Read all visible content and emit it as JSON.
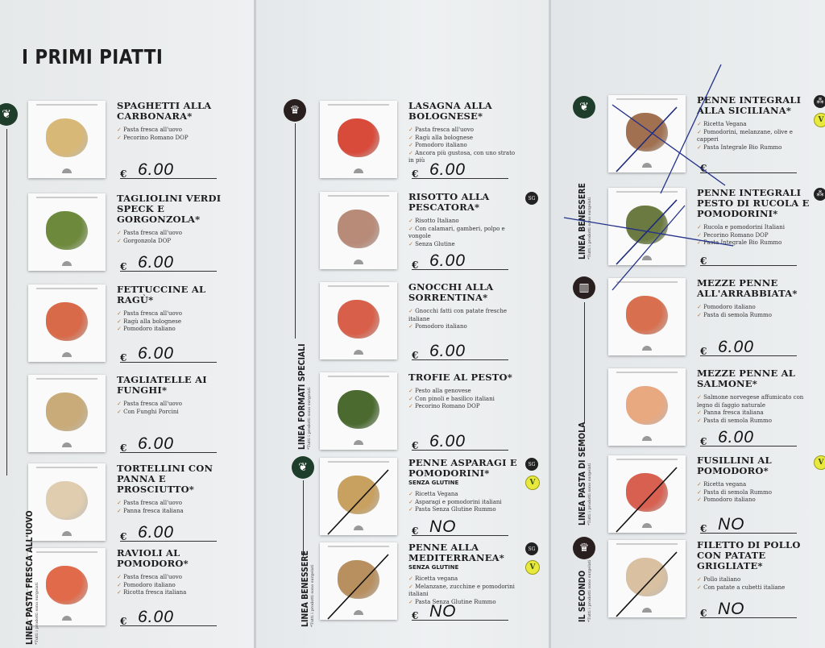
{
  "title": "I PRIMI PIATTI",
  "currency": "€",
  "sections": [
    {
      "name": "LINEA PASTA FRESCA ALL'UOVO",
      "note": "*Tutti i prodotti sono surgelati",
      "icon": "leaf-icon"
    },
    {
      "name": "LINEA FORMATI SPECIALI",
      "note": "*Tutti i prodotti sono surgelati",
      "icon": "chef-hat-icon"
    },
    {
      "name": "LINEA BENESSERE",
      "note": "*Tutti i prodotti sono surgelati",
      "icon": "leaf-icon"
    },
    {
      "name": "LINEA BENESSERE",
      "note": "*Tutti i prodotti sono surgelati",
      "icon": "leaf-icon"
    },
    {
      "name": "LINEA PASTA DI SEMOLA",
      "note": "*Tutti i prodotti sono surgelati",
      "icon": "pasta-icon"
    },
    {
      "name": "IL SECONDO",
      "note": "*Tutti i prodotti sono surgelati",
      "icon": "chef-hat-icon"
    }
  ],
  "colors": {
    "section_icon": "#1f3d2b",
    "dark_icon": "#2a1f1f",
    "vegan_badge": "#e7ea3c",
    "check": "#b07a4a"
  },
  "columns": [
    {
      "items": [
        {
          "name": "SPAGHETTI ALLA CARBONARA*",
          "ingredients": [
            "Pasta fresca all'uovo",
            "Pecorino Romano DOP"
          ],
          "price": "6.00",
          "food_color": "#d8b877"
        },
        {
          "name": "TAGLIOLINI VERDI SPECK E GORGONZOLA*",
          "ingredients": [
            "Pasta fresca all'uovo",
            "Gorgonzola DOP"
          ],
          "price": "6.00",
          "food_color": "#6d8a3c"
        },
        {
          "name": "FETTUCCINE AL RAGÙ*",
          "ingredients": [
            "Pasta fresca all'uovo",
            "Ragù alla bolognese",
            "Pomodoro italiano"
          ],
          "price": "6.00",
          "food_color": "#d86a4a"
        },
        {
          "name": "TAGLIATELLE AI FUNGHI*",
          "ingredients": [
            "Pasta fresca all'uovo",
            "Con Funghi Porcini"
          ],
          "price": "6.00",
          "food_color": "#c9ab7a"
        },
        {
          "name": "TORTELLINI CON PANNA E PROSCIUTTO*",
          "ingredients": [
            "Pasta fresca all'uovo",
            "Panna fresca italiana"
          ],
          "price": "6.00",
          "food_color": "#e0cdb0"
        },
        {
          "name": "RAVIOLI AL POMODORO*",
          "ingredients": [
            "Pasta fresca all'uovo",
            "Pomodoro italiano",
            "Ricotta fresca italiana"
          ],
          "price": "6.00",
          "food_color": "#e06a4a"
        }
      ]
    },
    {
      "items": [
        {
          "name": "LASAGNA ALLA BOLOGNESE*",
          "ingredients": [
            "Pasta fresca all'uovo",
            "Ragù alla bolognese",
            "Pomodoro italiano",
            "Ancora più gustosa, con uno strato in più"
          ],
          "price": "6.00",
          "food_color": "#d84a3a"
        },
        {
          "name": "RISOTTO ALLA PESCATORA*",
          "ingredients": [
            "Risotto Italiano",
            "Con calamari, gamberi, polpo e vongole",
            "Senza Glutine"
          ],
          "price": "6.00",
          "food_color": "#b88a78",
          "badges": [
            "gluten-free"
          ]
        },
        {
          "name": "GNOCCHI ALLA SORRENTINA*",
          "ingredients": [
            "Gnocchi fatti con patate fresche italiane",
            "Pomodoro italiano"
          ],
          "price": "6.00",
          "food_color": "#d8604a"
        },
        {
          "name": "TROFIE AL PESTO*",
          "ingredients": [
            "Pesto alla genovese",
            "Con pinoli e basilico italiani",
            "Pecorino Romano DOP"
          ],
          "price": "6.00",
          "food_color": "#4a6a30"
        },
        {
          "name": "PENNE ASPARAGI E POMODORINI*",
          "subtitle": "SENZA GLUTINE",
          "ingredients": [
            "Ricetta Vegana",
            "Asparagi e pomodorini italiani",
            "Pasta Senza Glutine Rummo"
          ],
          "price": "NO",
          "food_color": "#c8a060",
          "badges": [
            "gluten-free",
            "vegan"
          ],
          "crossed_out": true
        },
        {
          "name": "PENNE ALLA MEDITERRANEA*",
          "subtitle": "SENZA GLUTINE",
          "ingredients": [
            "Ricetta vegana",
            "Melanzane, zucchine e pomodorini italiani",
            "Pasta Senza Glutine Rummo"
          ],
          "price": "NO",
          "food_color": "#b89060",
          "badges": [
            "gluten-free",
            "vegan"
          ],
          "crossed_out": true
        }
      ]
    },
    {
      "items": [
        {
          "name": "PENNE INTEGRALI ALLA SICILIANA*",
          "ingredients": [
            "Ricetta Vegana",
            "Pomodorini, melanzane, olive e capperi",
            "Pasta Integrale Bio Rummo"
          ],
          "price": "",
          "food_color": "#a07050",
          "badges": [
            "wholegrain",
            "vegan"
          ],
          "crossed_out": true
        },
        {
          "name": "PENNE INTEGRALI PESTO DI RUCOLA E POMODORINI*",
          "ingredients": [
            "Rucola e pomodorini Italiani",
            "Pecorino Romano DOP",
            "Pasta Integrale Bio Rummo"
          ],
          "price": "",
          "food_color": "#6a7a40",
          "badges": [
            "wholegrain"
          ],
          "crossed_out": true
        },
        {
          "name": "MEZZE PENNE ALL'ARRABBIATA*",
          "ingredients": [
            "Pomodoro italiano",
            "Pasta di semola Rummo"
          ],
          "price": "6.00",
          "food_color": "#d87050"
        },
        {
          "name": "MEZZE PENNE AL SALMONE*",
          "ingredients": [
            "Salmone norvegese affumicato con legno di faggio naturale",
            "Panna fresca italiana",
            "Pasta di semola Rummo"
          ],
          "price": "6.00",
          "food_color": "#e8a880"
        },
        {
          "name": "FUSILLINI AL POMODORO*",
          "ingredients": [
            "Ricetta vegana",
            "Pasta di semola Rummo",
            "Pomodoro italiano"
          ],
          "price": "NO",
          "food_color": "#d86050",
          "badges": [
            "vegan"
          ],
          "crossed_out": true
        },
        {
          "name": "FILETTO DI POLLO CON PATATE GRIGLIATE*",
          "ingredients": [
            "Pollo italiano",
            "Con patate a cubetti italiane"
          ],
          "price": "NO",
          "food_color": "#d8c0a0",
          "crossed_out": true
        }
      ]
    }
  ]
}
